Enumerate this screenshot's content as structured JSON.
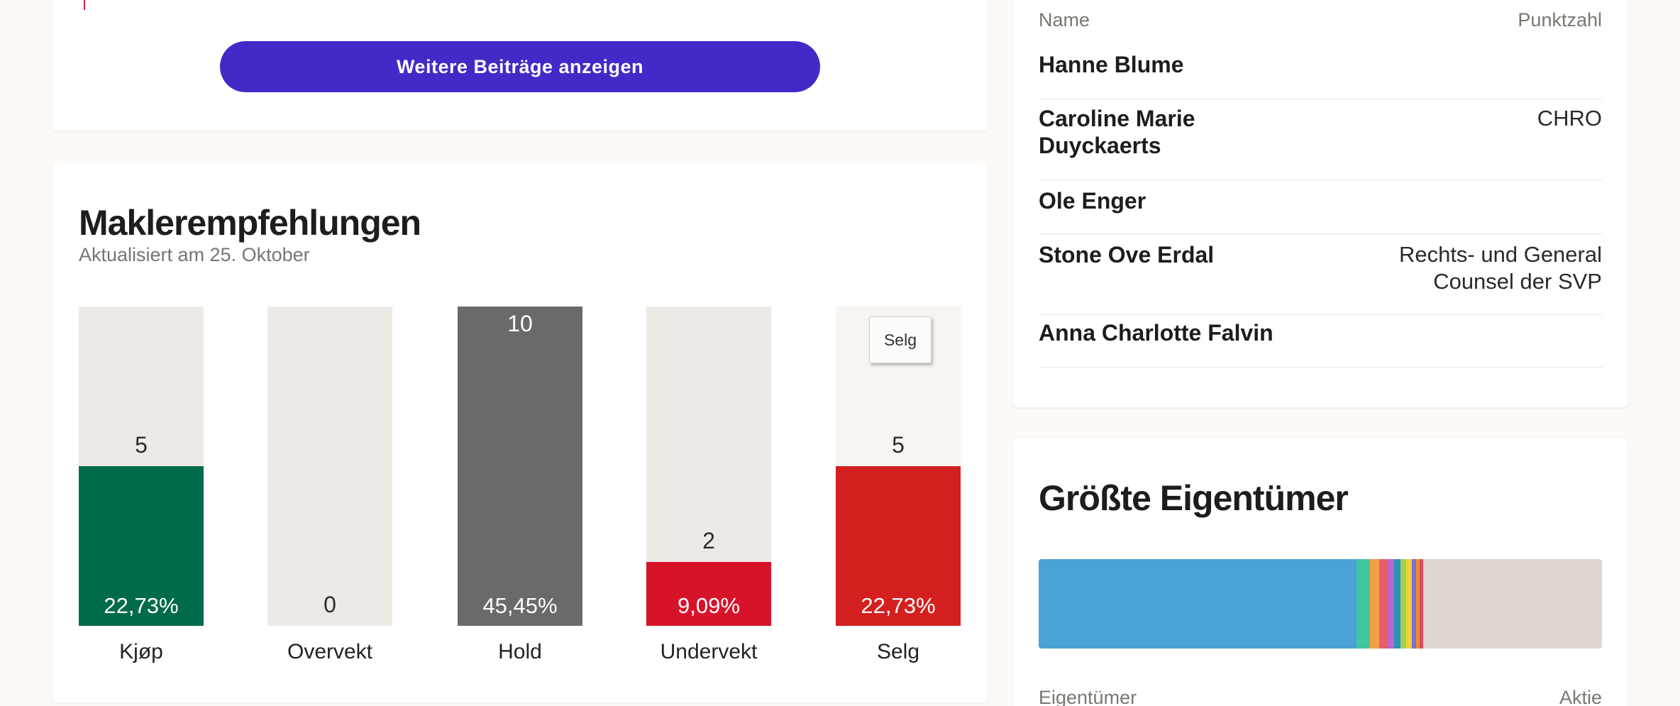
{
  "posts": {
    "more_button": "Weitere Beiträge anzeigen"
  },
  "broker": {
    "title": "Maklerempfehlungen",
    "subtitle": "Aktualisiert am 25. Oktober",
    "tooltip": "Selg",
    "bars": [
      {
        "label": "Kjøp",
        "count": "5",
        "pct": "22,73%",
        "value": 5,
        "color": "#006b4a"
      },
      {
        "label": "Overvekt",
        "count": "0",
        "pct": "",
        "value": 0,
        "color": "#006b4a"
      },
      {
        "label": "Hold",
        "count": "10",
        "pct": "45,45%",
        "value": 10,
        "color": "#6a6a6a"
      },
      {
        "label": "Undervekt",
        "count": "2",
        "pct": "9,09%",
        "value": 2,
        "color": "#d7132a"
      },
      {
        "label": "Selg",
        "count": "5",
        "pct": "22,73%",
        "value": 5,
        "color": "#d41f1f"
      }
    ],
    "max_value": 10
  },
  "insiders": {
    "col_name": "Name",
    "col_score": "Punktzahl",
    "rows": [
      {
        "name": "Hanne Blume",
        "role": ""
      },
      {
        "name": "Caroline Marie Duyckaerts",
        "role": "CHRO"
      },
      {
        "name": "Ole Enger",
        "role": ""
      },
      {
        "name": "Stone Ove Erdal",
        "role": "Rechts- und General Counsel der SVP"
      },
      {
        "name": "Anna Charlotte Falvin",
        "role": ""
      }
    ]
  },
  "owners": {
    "title": "Größte Eigentümer",
    "col_owner": "Eigentümer",
    "col_share": "Aktie",
    "segments": [
      {
        "share": 56.4,
        "color": "#4aa3d6"
      },
      {
        "share": 2.4,
        "color": "#3fc7a0"
      },
      {
        "share": 1.7,
        "color": "#f0a048"
      },
      {
        "share": 1.4,
        "color": "#e85d6b"
      },
      {
        "share": 1.2,
        "color": "#b866c7"
      },
      {
        "share": 1.1,
        "color": "#2e8fbf"
      },
      {
        "share": 1.0,
        "color": "#9dd44e"
      },
      {
        "share": 1.0,
        "color": "#f2d13c"
      },
      {
        "share": 0.8,
        "color": "#7a6fd4"
      },
      {
        "share": 0.7,
        "color": "#ef8a3c"
      },
      {
        "share": 0.6,
        "color": "#d94f5a"
      },
      {
        "share": 31.7,
        "color": "#ddd7cf"
      }
    ]
  }
}
